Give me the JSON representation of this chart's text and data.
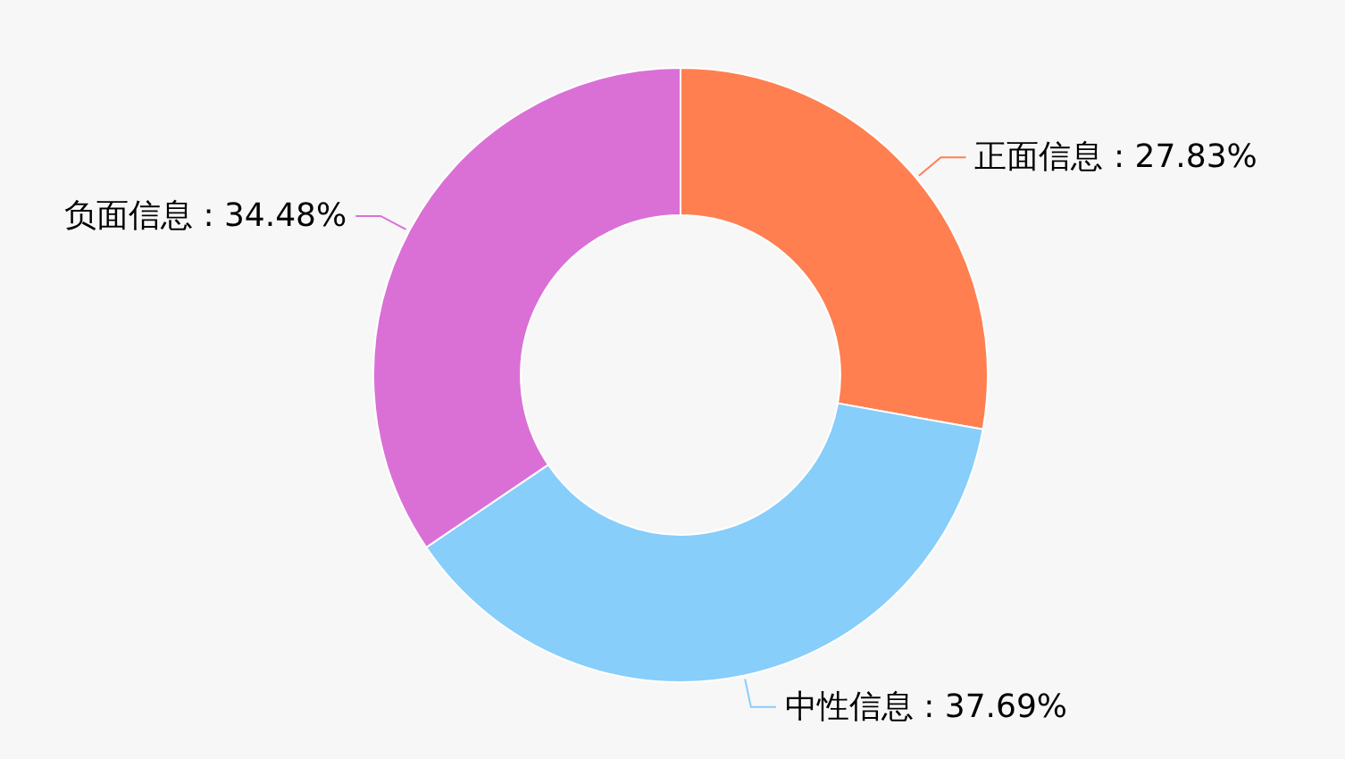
{
  "chart_data": {
    "type": "donut",
    "categories": [
      "正面信息",
      "中性信息",
      "负面信息"
    ],
    "values": [
      27.83,
      37.69,
      34.48
    ],
    "value_labels": [
      "27.83%",
      "37.69%",
      "34.48%"
    ],
    "colors": [
      "#ff7f50",
      "#87cefa",
      "#da70d6"
    ]
  }
}
